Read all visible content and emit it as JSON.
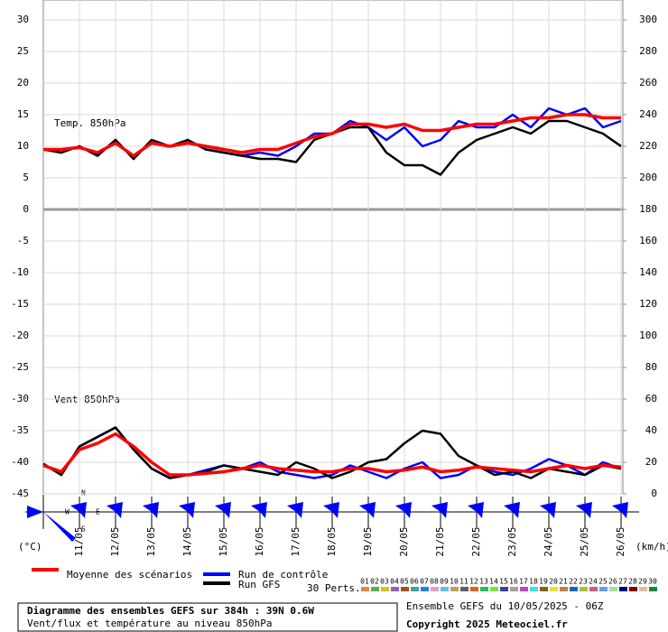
{
  "chart_data": {
    "type": "line",
    "panel_labels": [
      "Temp. 850hPa",
      "Vent 850hPa"
    ],
    "y_unit": "(°C)",
    "y2_unit": "(km/h)",
    "xlim": [
      0,
      384
    ],
    "xticks": [
      {
        "value": 24,
        "label": "11/05"
      },
      {
        "value": 48,
        "label": "12/05"
      },
      {
        "value": 72,
        "label": "13/05"
      },
      {
        "value": 96,
        "label": "14/05"
      },
      {
        "value": 120,
        "label": "15/05"
      },
      {
        "value": 144,
        "label": "16/05"
      },
      {
        "value": 168,
        "label": "17/05"
      },
      {
        "value": 192,
        "label": "18/05"
      },
      {
        "value": 216,
        "label": "19/05"
      },
      {
        "value": 240,
        "label": "20/05"
      },
      {
        "value": 264,
        "label": "21/05"
      },
      {
        "value": 288,
        "label": "22/05"
      },
      {
        "value": 312,
        "label": "23/05"
      },
      {
        "value": 336,
        "label": "24/05"
      },
      {
        "value": 360,
        "label": "25/05"
      },
      {
        "value": 384,
        "label": "26/05"
      }
    ],
    "ylim": [
      -45,
      30
    ],
    "yticks": [
      30,
      25,
      20,
      15,
      10,
      5,
      0,
      -5,
      -10,
      -15,
      -20,
      -25,
      -30,
      -35,
      -40,
      -45
    ],
    "y2lim": [
      0,
      300
    ],
    "y2ticks": [
      300,
      280,
      260,
      240,
      220,
      200,
      180,
      160,
      140,
      120,
      100,
      80,
      60,
      40,
      20,
      0
    ],
    "x": [
      0,
      12,
      24,
      36,
      48,
      60,
      72,
      84,
      96,
      108,
      120,
      132,
      144,
      156,
      168,
      180,
      192,
      204,
      216,
      228,
      240,
      252,
      264,
      276,
      288,
      300,
      312,
      324,
      336,
      348,
      360,
      372,
      384
    ],
    "series": [
      {
        "name": "Moyenne des scénarios",
        "color": "#ff0000",
        "values": [
          9.5,
          9.5,
          9.8,
          9.0,
          10.5,
          8.5,
          10.5,
          10.0,
          10.5,
          10.0,
          9.5,
          9.0,
          9.5,
          9.5,
          10.5,
          11.5,
          12.0,
          13.5,
          13.5,
          13.0,
          13.5,
          12.5,
          12.5,
          13.0,
          13.5,
          13.5,
          14.0,
          14.5,
          14.5,
          15.0,
          15.0,
          14.5,
          14.5
        ],
        "wind": [
          18,
          14,
          28,
          32,
          38,
          30,
          20,
          12,
          12,
          13,
          14,
          16,
          18,
          16,
          15,
          14,
          14,
          16,
          16,
          14,
          15,
          17,
          14,
          15,
          17,
          16,
          15,
          14,
          16,
          18,
          16,
          18,
          17
        ]
      },
      {
        "name": "Run de contrôle",
        "color": "#0000ff",
        "values": [
          9.5,
          9,
          10,
          8.5,
          11,
          8,
          11,
          10,
          11,
          9.5,
          9,
          8.5,
          9,
          8.5,
          10,
          12,
          12,
          14,
          13,
          11,
          13,
          10,
          11,
          14,
          13,
          13,
          15,
          13,
          16,
          15,
          16,
          13,
          14
        ],
        "wind": [
          19,
          12,
          30,
          36,
          42,
          28,
          16,
          10,
          12,
          15,
          18,
          16,
          20,
          14,
          12,
          10,
          12,
          18,
          14,
          10,
          16,
          20,
          10,
          12,
          18,
          14,
          12,
          16,
          22,
          18,
          12,
          20,
          16
        ]
      },
      {
        "name": "Run GFS",
        "color": "#000000",
        "values": [
          9.5,
          9,
          10,
          8.5,
          11,
          8,
          11,
          10,
          11,
          9.5,
          9,
          8.5,
          8,
          8,
          7.5,
          11,
          12,
          13,
          13,
          9,
          7,
          7,
          5.5,
          9,
          11,
          12,
          13,
          12,
          14,
          14,
          13,
          12,
          10
        ],
        "wind": [
          19,
          12,
          30,
          36,
          42,
          28,
          16,
          10,
          12,
          14,
          18,
          16,
          14,
          12,
          20,
          16,
          10,
          14,
          20,
          22,
          32,
          40,
          38,
          24,
          18,
          12,
          14,
          10,
          16,
          14,
          12,
          18,
          16
        ]
      }
    ],
    "perturbations_label": "30 Perts.",
    "perturbations": [
      {
        "name": "01",
        "color": "#e8833a"
      },
      {
        "name": "02",
        "color": "#58b04a"
      },
      {
        "name": "03",
        "color": "#d8c020"
      },
      {
        "name": "04",
        "color": "#9060c0"
      },
      {
        "name": "05",
        "color": "#a05020"
      },
      {
        "name": "06",
        "color": "#40a0a0"
      },
      {
        "name": "07",
        "color": "#2080e0"
      },
      {
        "name": "08",
        "color": "#e0a0c0"
      },
      {
        "name": "09",
        "color": "#60c0e0"
      },
      {
        "name": "10",
        "color": "#c0a060"
      },
      {
        "name": "11",
        "color": "#606060"
      },
      {
        "name": "12",
        "color": "#e06020"
      },
      {
        "name": "13",
        "color": "#20c060"
      },
      {
        "name": "14",
        "color": "#80e040"
      },
      {
        "name": "15",
        "color": "#4040a0"
      },
      {
        "name": "16",
        "color": "#a0a0a0"
      },
      {
        "name": "17",
        "color": "#c040c0"
      },
      {
        "name": "18",
        "color": "#40e0e0"
      },
      {
        "name": "19",
        "color": "#806020"
      },
      {
        "name": "20",
        "color": "#e0e040"
      },
      {
        "name": "21",
        "color": "#c08040"
      },
      {
        "name": "22",
        "color": "#2060c0"
      },
      {
        "name": "23",
        "color": "#a0c040"
      },
      {
        "name": "24",
        "color": "#c06080"
      },
      {
        "name": "25",
        "color": "#60a0e0"
      },
      {
        "name": "26",
        "color": "#a0e0a0"
      },
      {
        "name": "27",
        "color": "#000080"
      },
      {
        "name": "28",
        "color": "#800000"
      },
      {
        "name": "29",
        "color": "#e0c0a0"
      },
      {
        "name": "30",
        "color": "#208040"
      }
    ],
    "footer": {
      "title": "Diagramme des ensembles GEFS sur 384h : 39N 0.6W",
      "subtitle": "Vent/flux et température au niveau 850hPa",
      "run": "Ensemble GEFS du 10/05/2025 - 06Z",
      "copyright": "Copyright 2025 Meteociel.fr"
    },
    "compass": [
      "N",
      "W",
      "E",
      "S"
    ]
  }
}
